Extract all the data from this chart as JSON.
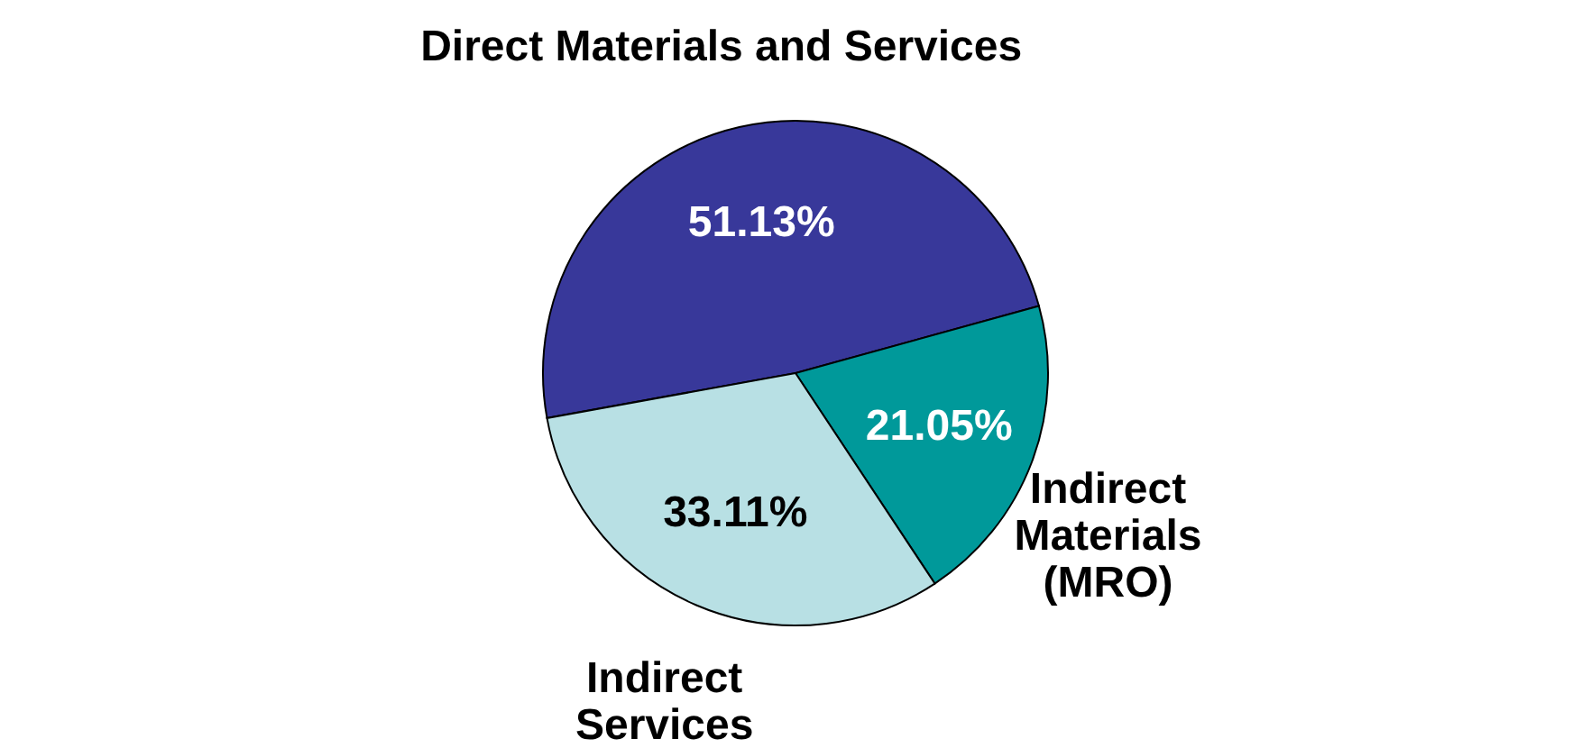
{
  "chart_data": {
    "type": "pie",
    "categories": [
      "Direct Materials and Services",
      "Indirect\nMaterials\n(MRO)",
      "Indirect\nServices"
    ],
    "values": [
      51.13,
      21.05,
      33.11
    ],
    "value_labels": [
      "51.13%",
      "21.05%",
      "33.11%"
    ],
    "colors": [
      "#38389a",
      "#00999a",
      "#b8e0e4"
    ],
    "legend": false
  }
}
